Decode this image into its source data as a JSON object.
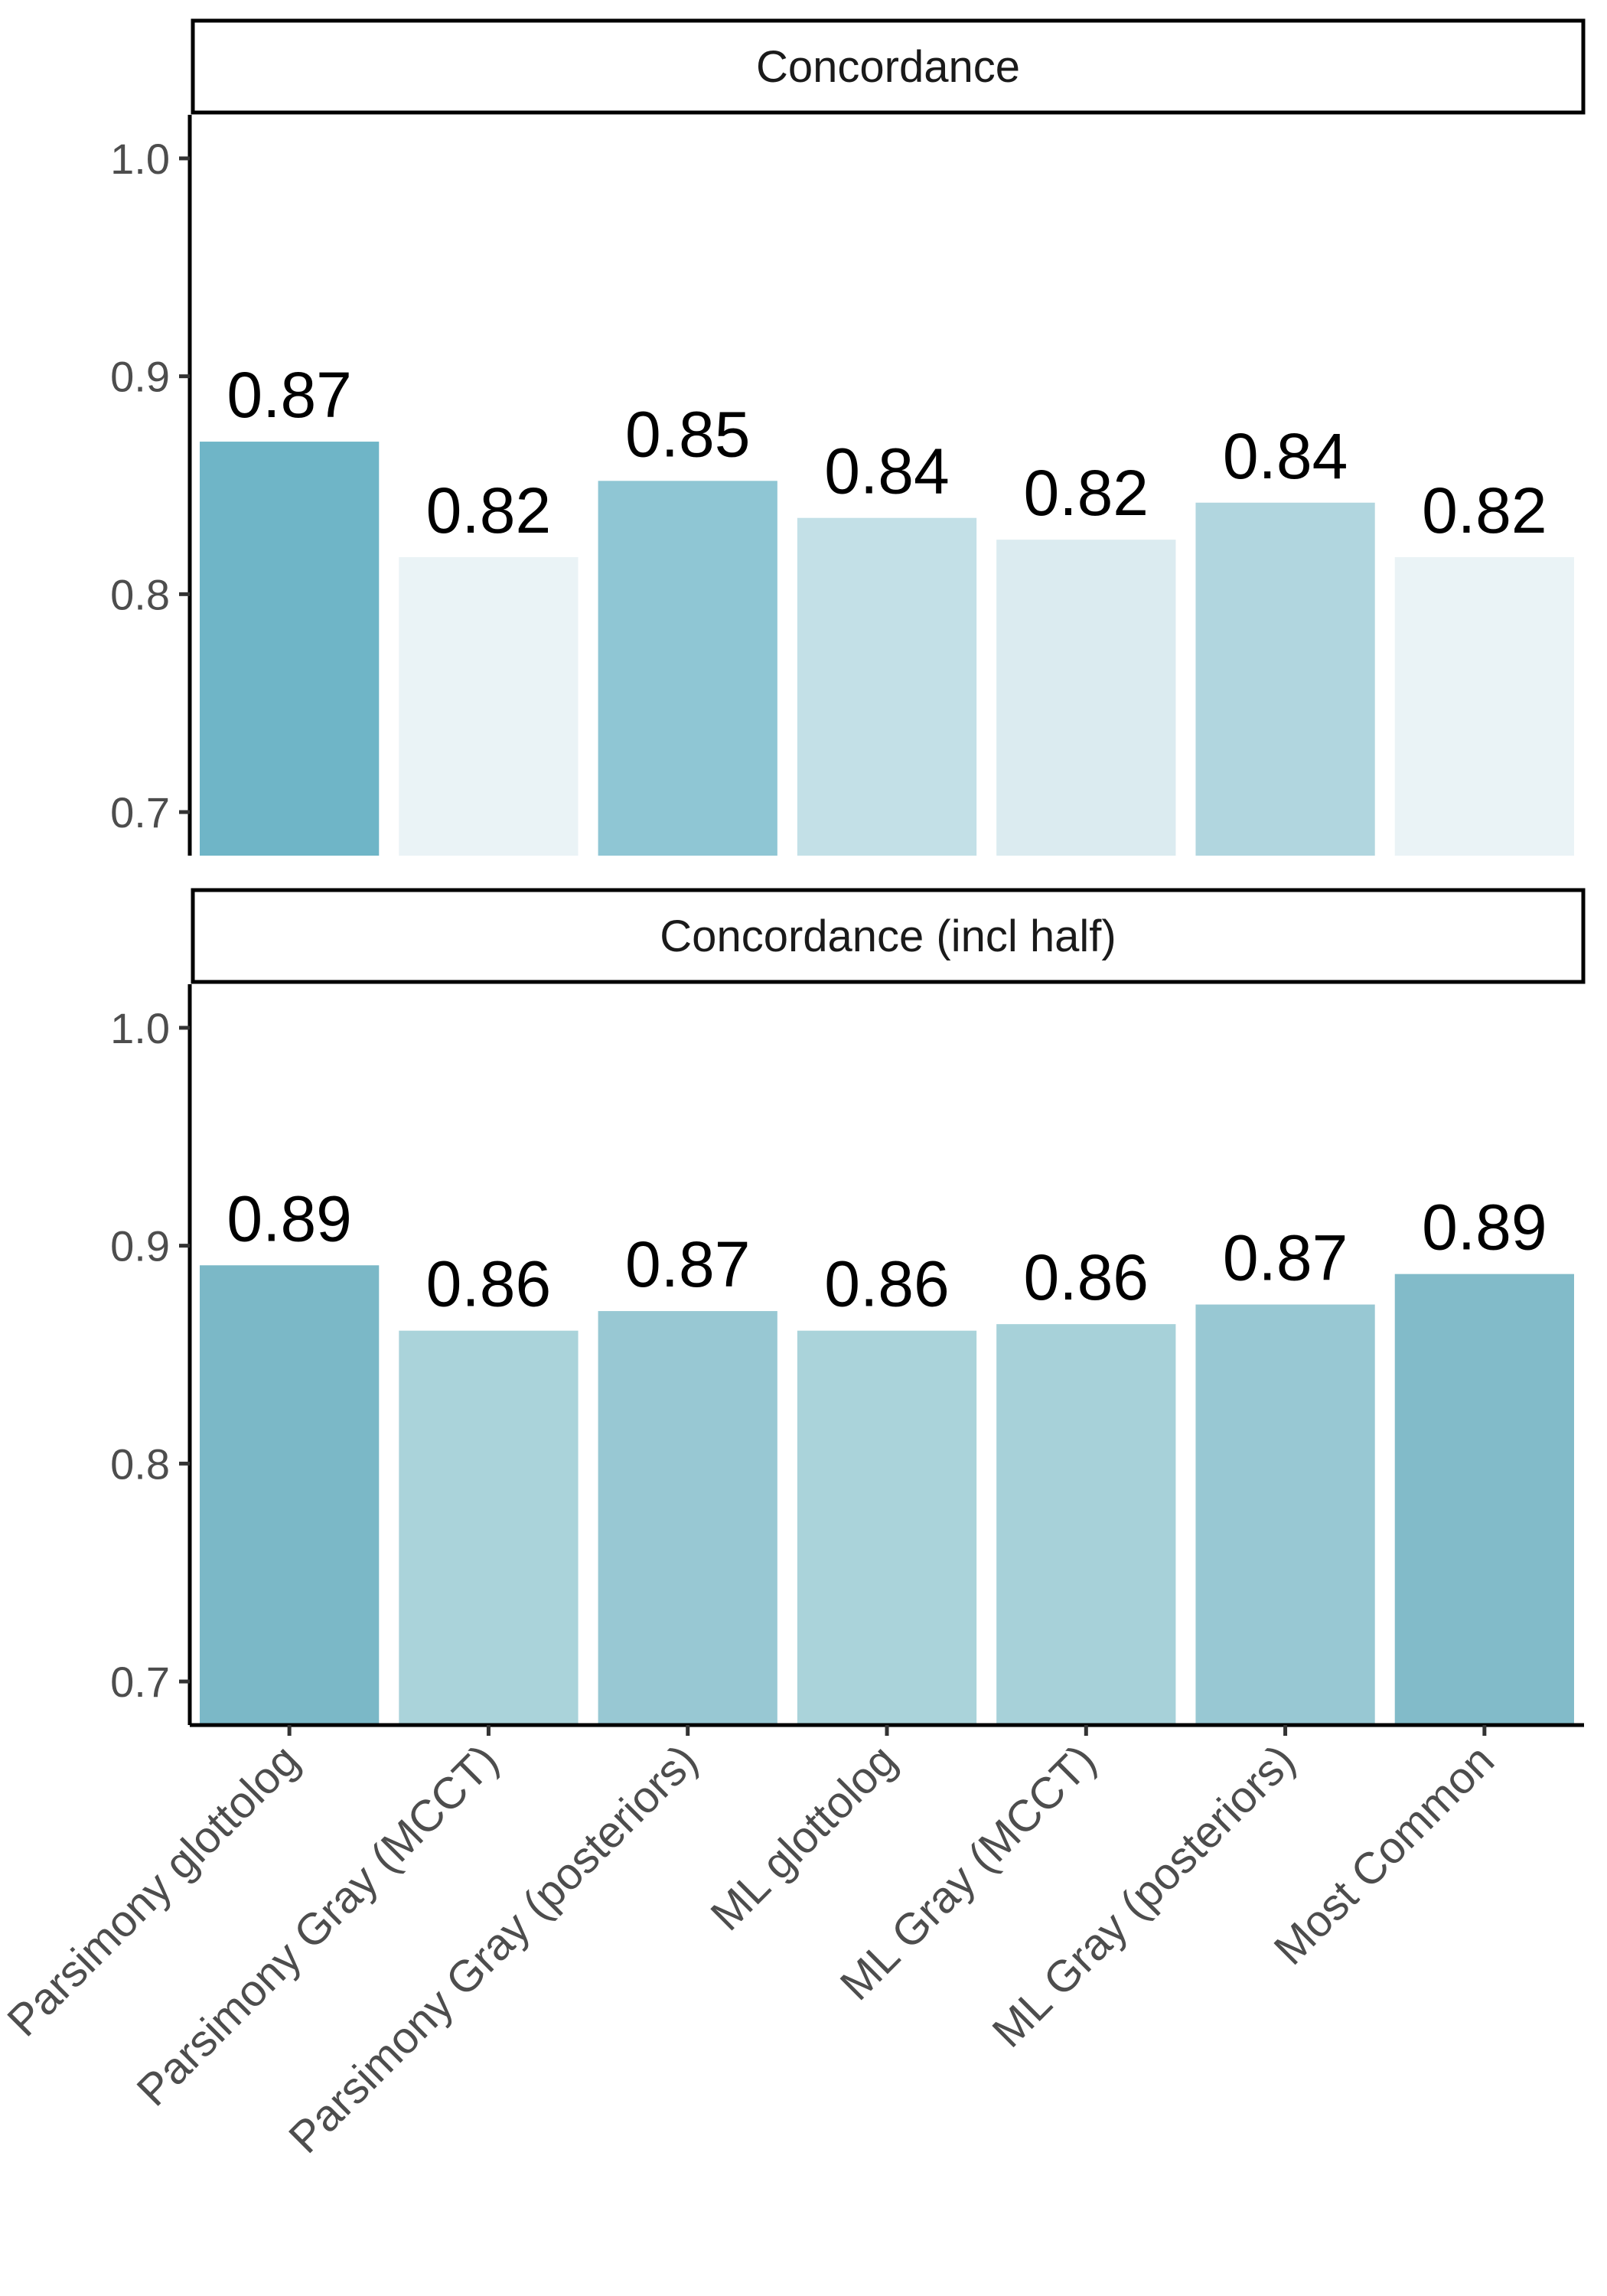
{
  "chart_data": {
    "type": "bar",
    "categories": [
      "Parsimony glottolog",
      "Parsimony Gray (MCCT)",
      "Parsimony Gray (posteriors)",
      "ML glottolog",
      "ML Gray (MCCT)",
      "ML Gray (posteriors)",
      "Most Common"
    ],
    "panels": [
      {
        "title": "Concordance",
        "values": [
          0.87,
          0.817,
          0.852,
          0.835,
          0.825,
          0.842,
          0.817
        ],
        "labels": [
          "0.87",
          "0.82",
          "0.85",
          "0.84",
          "0.82",
          "0.84",
          "0.82"
        ],
        "colors": [
          "#6fb5c7",
          "#eaf3f6",
          "#8fc6d4",
          "#c3e0e7",
          "#dbebf0",
          "#b1d6df",
          "#eaf3f6"
        ]
      },
      {
        "title": "Concordance (incl half)",
        "values": [
          0.891,
          0.861,
          0.87,
          0.861,
          0.864,
          0.873,
          0.887
        ],
        "labels": [
          "0.89",
          "0.86",
          "0.87",
          "0.86",
          "0.86",
          "0.87",
          "0.89"
        ],
        "colors": [
          "#7bb8c7",
          "#aad3da",
          "#98c8d3",
          "#aad3da",
          "#a7d1d9",
          "#98c8d3",
          "#82bbc9"
        ]
      }
    ],
    "ylim": [
      0.68,
      1.02
    ],
    "yticks": [
      0.7,
      0.8,
      0.9,
      1.0
    ],
    "ytick_labels": [
      "0.7",
      "0.8",
      "0.9",
      "1.0"
    ],
    "xlabel": "",
    "ylabel": "",
    "grid": false,
    "legend": "none"
  }
}
